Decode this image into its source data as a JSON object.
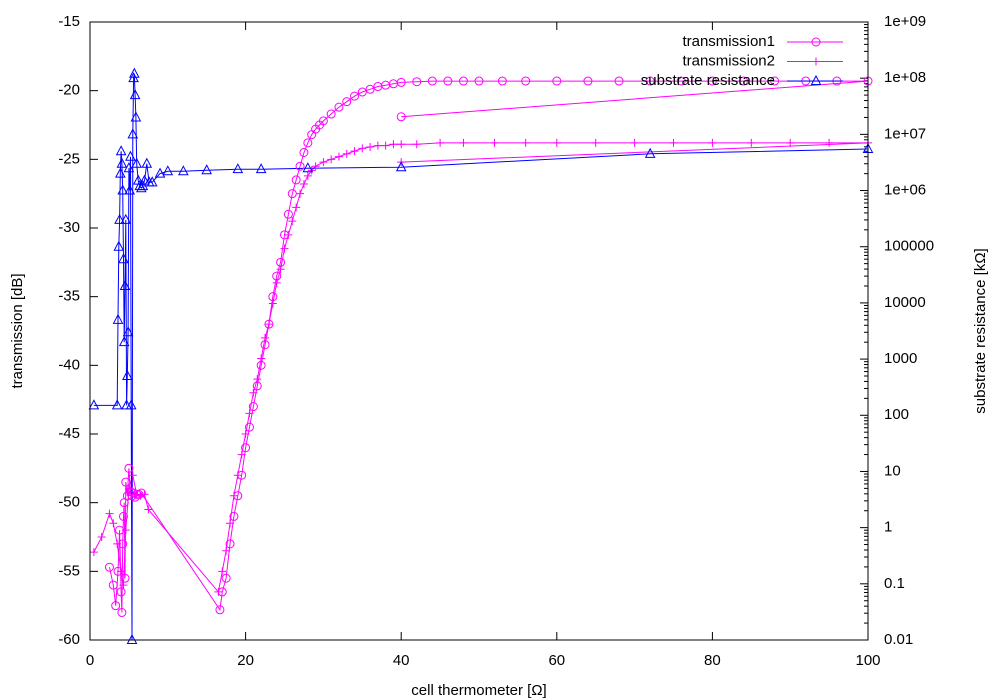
{
  "chart_data": {
    "type": "scatter",
    "xlabel": "cell thermometer [Ω]",
    "ylabel": "transmission [dB]",
    "y2label": "substrate resistance [kΩ]",
    "xlim": [
      0,
      100
    ],
    "ylim": [
      -60,
      -15
    ],
    "y2lim": [
      0.01,
      1000000000
    ],
    "y2scale": "log",
    "grid": false,
    "legend_position": "top-right",
    "xticks": [
      "0",
      "20",
      "40",
      "60",
      "80",
      "100"
    ],
    "yticks": [
      "-60",
      "-55",
      "-50",
      "-45",
      "-40",
      "-35",
      "-30",
      "-25",
      "-20",
      "-15"
    ],
    "y2ticks": [
      "0.01",
      "0.1",
      "1",
      "10",
      "100",
      "1000",
      "10000",
      "100000",
      "1e+06",
      "1e+07",
      "1e+08",
      "1e+09"
    ],
    "series": [
      {
        "name": "transmission1",
        "axis": "left",
        "color": "#ff00ff",
        "marker": "circle",
        "x": [
          2.5,
          3.0,
          3.3,
          3.6,
          3.8,
          4.0,
          4.1,
          4.2,
          4.3,
          4.4,
          4.5,
          4.6,
          4.8,
          5.0,
          5.2,
          5.4,
          5.6,
          5.8,
          6.0,
          6.3,
          6.6,
          16.7,
          17.0,
          17.5,
          18.0,
          18.5,
          19.0,
          19.5,
          20.0,
          20.5,
          21.0,
          21.5,
          22.0,
          22.5,
          23.0,
          23.5,
          24.0,
          24.5,
          25.0,
          25.5,
          26.0,
          26.5,
          27.0,
          27.5,
          28.0,
          28.5,
          29.0,
          29.5,
          30.0,
          31.0,
          32.0,
          33.0,
          34.0,
          35.0,
          36.0,
          37.0,
          38.0,
          39.0,
          40.0,
          42.0,
          44.0,
          46.0,
          48.0,
          50.0,
          53.0,
          56.0,
          60.0,
          64.0,
          68.0,
          72.0,
          76.0,
          80.0,
          84.0,
          88.0,
          92.0,
          96.0,
          100.0,
          40.0
        ],
        "y": [
          -54.7,
          -56.0,
          -57.5,
          -55.0,
          -52.0,
          -56.5,
          -58.0,
          -53.0,
          -51.0,
          -50.0,
          -55.5,
          -48.5,
          -49.5,
          -47.5,
          -49.2,
          -49.5,
          -49.3,
          -49.6,
          -49.4,
          -49.4,
          -49.3,
          -57.8,
          -56.5,
          -55.5,
          -53.0,
          -51.0,
          -49.5,
          -48.0,
          -46.0,
          -44.5,
          -43.0,
          -41.5,
          -40.0,
          -38.5,
          -37.0,
          -35.0,
          -33.5,
          -32.5,
          -30.5,
          -29.0,
          -27.5,
          -26.5,
          -25.5,
          -24.5,
          -23.8,
          -23.2,
          -22.8,
          -22.5,
          -22.2,
          -21.7,
          -21.2,
          -20.8,
          -20.4,
          -20.1,
          -19.9,
          -19.7,
          -19.6,
          -19.5,
          -19.4,
          -19.35,
          -19.3,
          -19.3,
          -19.3,
          -19.3,
          -19.3,
          -19.3,
          -19.3,
          -19.3,
          -19.3,
          -19.3,
          -19.3,
          -19.3,
          -19.3,
          -19.3,
          -19.3,
          -19.3,
          -19.3,
          -21.9
        ]
      },
      {
        "name": "transmission2",
        "axis": "left",
        "color": "#ff00ff",
        "marker": "plus",
        "x": [
          0.5,
          1.5,
          2.5,
          3.0,
          3.5,
          4.0,
          4.3,
          4.6,
          5.0,
          5.5,
          6.0,
          6.5,
          7.0,
          7.5,
          16.5,
          17.0,
          17.5,
          18.0,
          18.5,
          19.0,
          19.5,
          20.0,
          20.5,
          21.0,
          21.5,
          22.0,
          22.5,
          23.0,
          23.5,
          24.0,
          24.5,
          25.0,
          25.5,
          26.0,
          26.5,
          27.0,
          27.5,
          28.0,
          28.5,
          29.0,
          30.0,
          31.0,
          32.0,
          33.0,
          34.0,
          35.0,
          36.0,
          37.0,
          38.0,
          39.0,
          40.0,
          42.0,
          45.0,
          48.0,
          52.0,
          56.0,
          60.0,
          65.0,
          70.0,
          75.0,
          80.0,
          85.0,
          90.0,
          95.0,
          100.0,
          40.0
        ],
        "y": [
          -53.6,
          -52.5,
          -50.8,
          -51.5,
          -53.0,
          -55.0,
          -56.0,
          -52.0,
          -49.0,
          -48.0,
          -49.4,
          -49.5,
          -49.4,
          -50.5,
          -56.5,
          -55.0,
          -53.5,
          -51.5,
          -49.5,
          -48.0,
          -46.5,
          -45.0,
          -43.5,
          -42.0,
          -41.0,
          -39.5,
          -38.0,
          -37.0,
          -35.5,
          -34.0,
          -33.0,
          -31.5,
          -30.5,
          -29.5,
          -28.5,
          -27.5,
          -26.8,
          -26.2,
          -25.8,
          -25.5,
          -25.2,
          -25.0,
          -24.8,
          -24.6,
          -24.4,
          -24.2,
          -24.1,
          -24.0,
          -24.0,
          -23.9,
          -23.9,
          -23.9,
          -23.8,
          -23.8,
          -23.8,
          -23.8,
          -23.8,
          -23.8,
          -23.8,
          -23.8,
          -23.8,
          -23.8,
          -23.8,
          -23.8,
          -23.8,
          -25.2
        ]
      },
      {
        "name": "substrate resistance",
        "axis": "right",
        "color": "#0000ff",
        "marker": "triangle",
        "x": [
          0.5,
          3.5,
          3.6,
          3.7,
          3.8,
          3.9,
          4.0,
          4.1,
          4.2,
          4.3,
          4.4,
          4.5,
          4.6,
          4.7,
          4.8,
          4.9,
          5.0,
          5.1,
          5.2,
          5.3,
          5.4,
          5.5,
          5.6,
          5.7,
          5.8,
          5.9,
          6.0,
          6.2,
          6.4,
          6.6,
          6.8,
          7.0,
          7.3,
          7.6,
          8.0,
          9.0,
          10.0,
          12.0,
          15.0,
          19.0,
          22.0,
          28.0,
          40.0,
          72.0,
          100.0
        ],
        "y": [
          150,
          150,
          5000,
          100000,
          300000,
          2000000,
          5000000,
          3000000,
          1000000,
          60000,
          2000,
          20000,
          300000,
          150,
          500,
          3000,
          2500000,
          1000000,
          4000000,
          150,
          0.01,
          10000000,
          100000000,
          120000000,
          50000000,
          20000000,
          3000000,
          1500000,
          1200000,
          1100000,
          1200000,
          1500000,
          3000000,
          1400000,
          1400000,
          2000000,
          2200000,
          2200000,
          2300000,
          2400000,
          2400000,
          2500000,
          2600000,
          4500000,
          5500000
        ]
      }
    ]
  }
}
